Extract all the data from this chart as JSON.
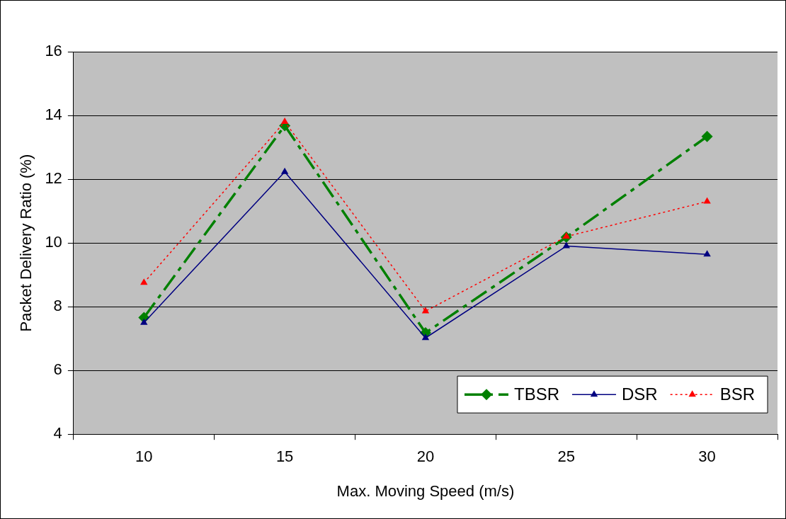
{
  "chart_data": {
    "type": "line",
    "xlabel": "Max. Moving Speed (m/s)",
    "ylabel": "Packet Delivery Ratio (%)",
    "categories": [
      "10",
      "15",
      "20",
      "25",
      "30"
    ],
    "series": [
      {
        "name": "TBSR",
        "color": "#008000",
        "marker": "diamond",
        "line_style": "dashed",
        "values": [
          7.66,
          13.68,
          7.18,
          10.18,
          13.34
        ]
      },
      {
        "name": "DSR",
        "color": "#000080",
        "marker": "triangle",
        "line_style": "solid",
        "values": [
          7.5,
          12.23,
          7.02,
          9.9,
          9.64
        ]
      },
      {
        "name": "BSR",
        "color": "#ff0000",
        "marker": "triangle",
        "line_style": "dotted",
        "values": [
          8.75,
          13.8,
          7.86,
          10.2,
          11.3
        ]
      }
    ],
    "ylim": [
      4,
      16
    ],
    "yticks": [
      4,
      6,
      8,
      10,
      12,
      14,
      16
    ],
    "grid": "y",
    "legend": "bottom right"
  }
}
